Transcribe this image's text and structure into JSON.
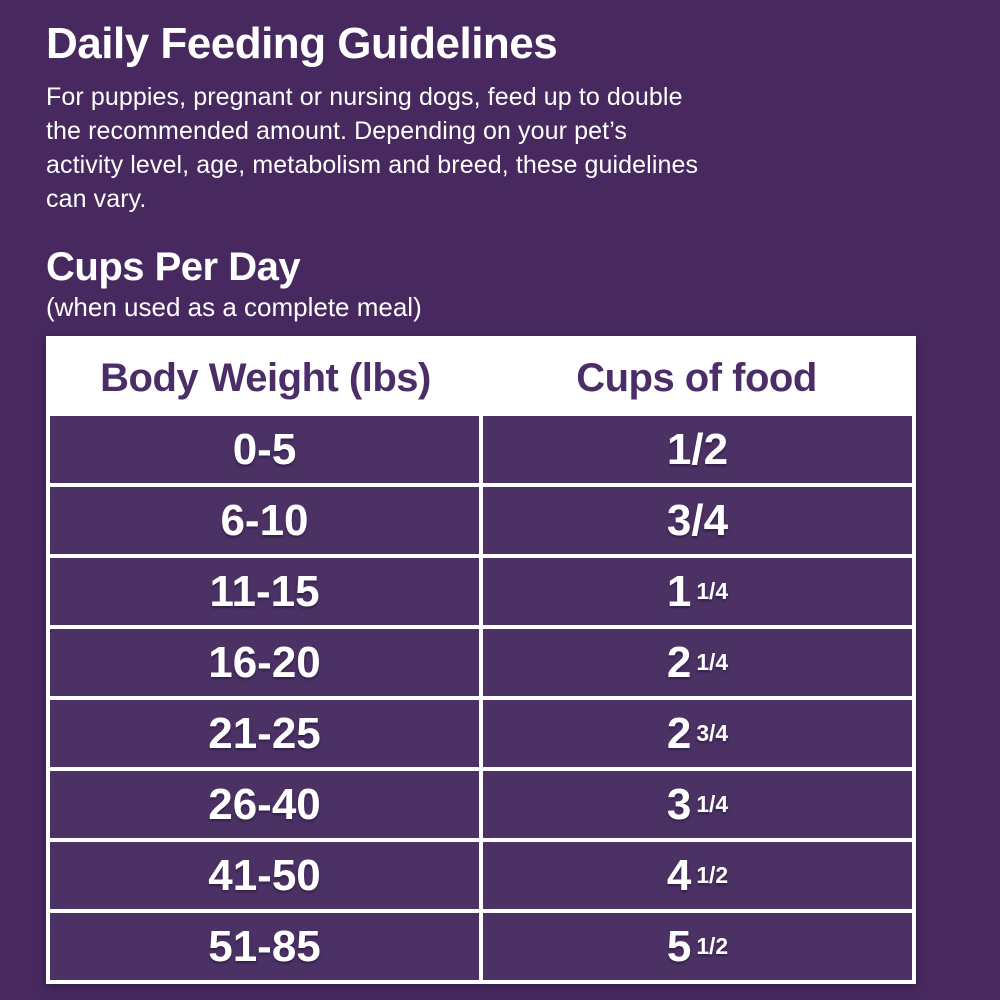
{
  "panel": {
    "title": "Daily Feeding Guidelines",
    "description_lines": [
      "For puppies, pregnant or nursing dogs, feed up to double",
      "the recommended amount. Depending on your pet’s",
      "activity level, age, metabolism and breed, these guidelines",
      "can vary."
    ]
  },
  "section": {
    "heading": "Cups Per Day",
    "subheading": "(when used as a complete meal)"
  },
  "table": {
    "columns": [
      "Body Weight (lbs)",
      "Cups of food"
    ],
    "rows": [
      {
        "weight": "0-5",
        "cups_whole": "",
        "cups_frac": "1/2"
      },
      {
        "weight": "6-10",
        "cups_whole": "",
        "cups_frac": "3/4"
      },
      {
        "weight": "11-15",
        "cups_whole": "1",
        "cups_frac": "1/4"
      },
      {
        "weight": "16-20",
        "cups_whole": "2",
        "cups_frac": "1/4"
      },
      {
        "weight": "21-25",
        "cups_whole": "2",
        "cups_frac": "3/4"
      },
      {
        "weight": "26-40",
        "cups_whole": "3",
        "cups_frac": "1/4"
      },
      {
        "weight": "41-50",
        "cups_whole": "4",
        "cups_frac": "1/2"
      },
      {
        "weight": "51-85",
        "cups_whole": "5",
        "cups_frac": "1/2"
      }
    ]
  },
  "colors": {
    "page_background": "#47295F",
    "cell_background": "#4B3164",
    "header_text": "#4B2D68",
    "body_text": "#FFFFFF",
    "table_border": "#FFFFFF"
  }
}
